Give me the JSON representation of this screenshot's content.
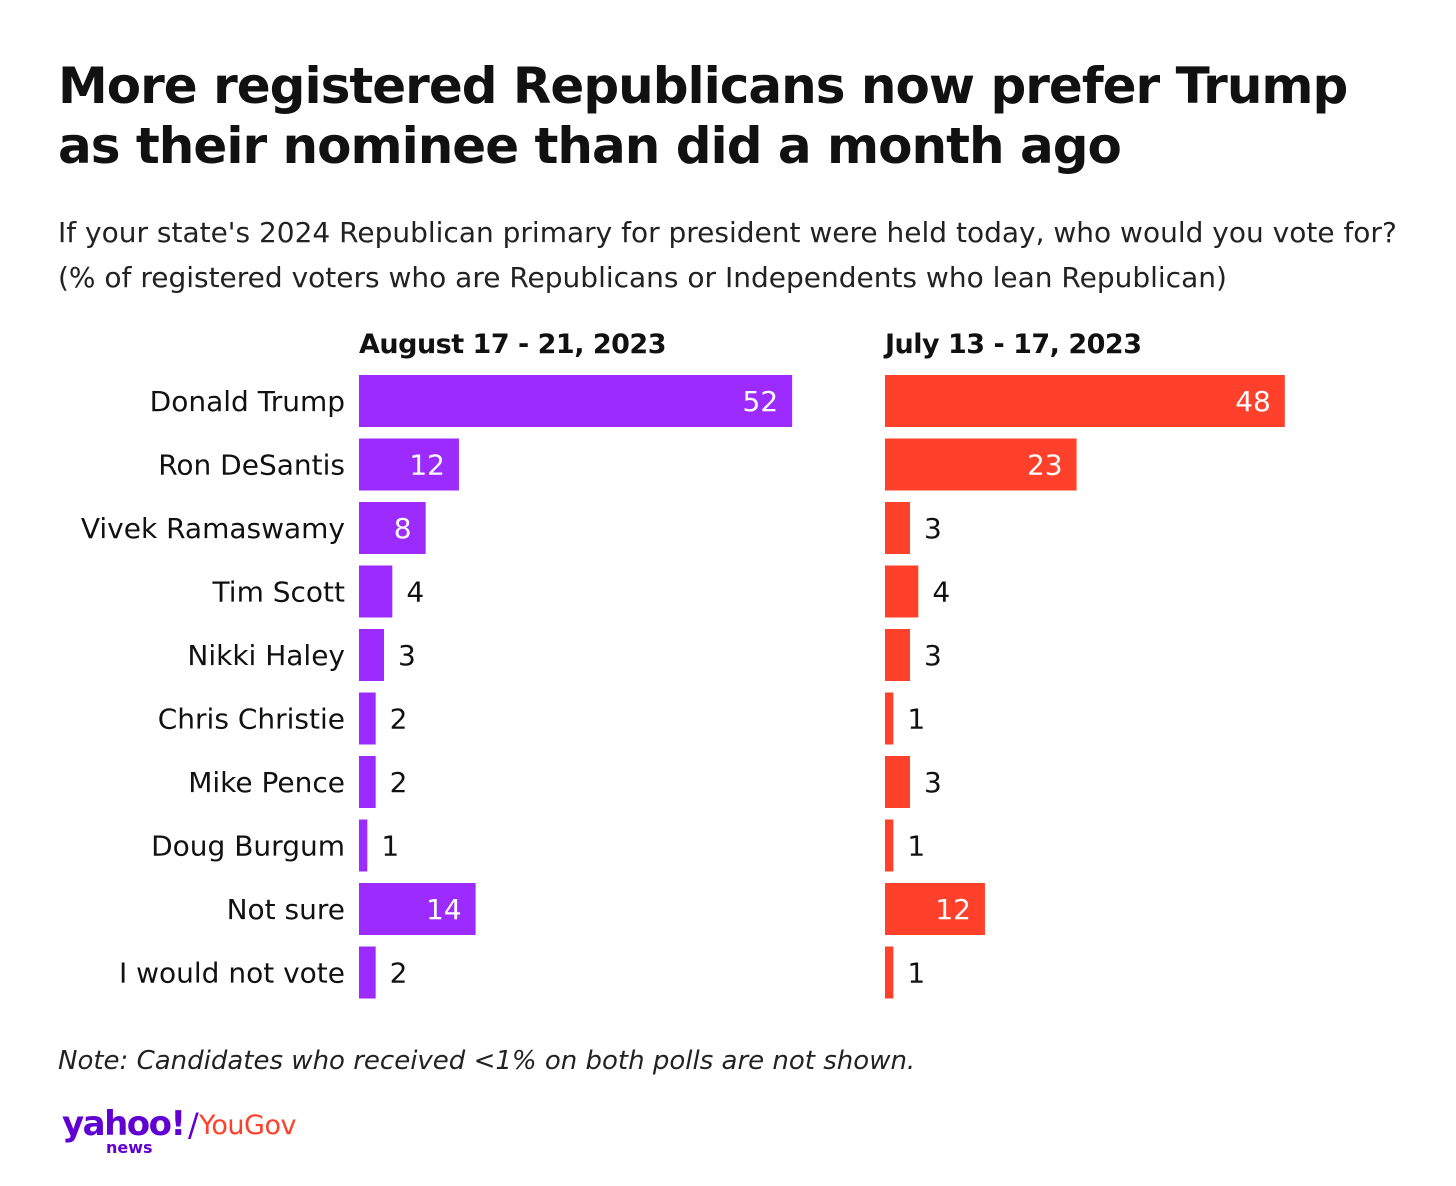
{
  "title": "More registered Republicans now prefer Trump as their nominee than did a month ago",
  "subtitle": "If your state's 2024 Republican primary for president were held today, who would you vote for? (% of registered voters who are Republicans or Independents who lean Republican)",
  "note": "Note: Candidates who received <1% on both polls are not shown.",
  "logo": {
    "yahoo": "yahoo!",
    "news": "news",
    "slash": "/",
    "yougov": "YouGov"
  },
  "colors": {
    "purple": "#9b2bff",
    "red": "#ff412c",
    "text": "#111111",
    "brand_purple": "#6001d2"
  },
  "chart_data": {
    "type": "bar",
    "orientation": "horizontal",
    "categories": [
      "Donald Trump",
      "Ron DeSantis",
      "Vivek Ramaswamy",
      "Tim Scott",
      "Nikki Haley",
      "Chris Christie",
      "Mike Pence",
      "Doug Burgum",
      "Not sure",
      "I would not vote"
    ],
    "series": [
      {
        "name": "August 17 - 21, 2023",
        "color": "#9b2bff",
        "values": [
          52,
          12,
          8,
          4,
          3,
          2,
          2,
          1,
          14,
          2
        ]
      },
      {
        "name": "July 13 - 17, 2023",
        "color": "#ff412c",
        "values": [
          48,
          23,
          3,
          4,
          3,
          1,
          3,
          1,
          12,
          1
        ]
      }
    ],
    "grid": false,
    "legend": "none"
  }
}
